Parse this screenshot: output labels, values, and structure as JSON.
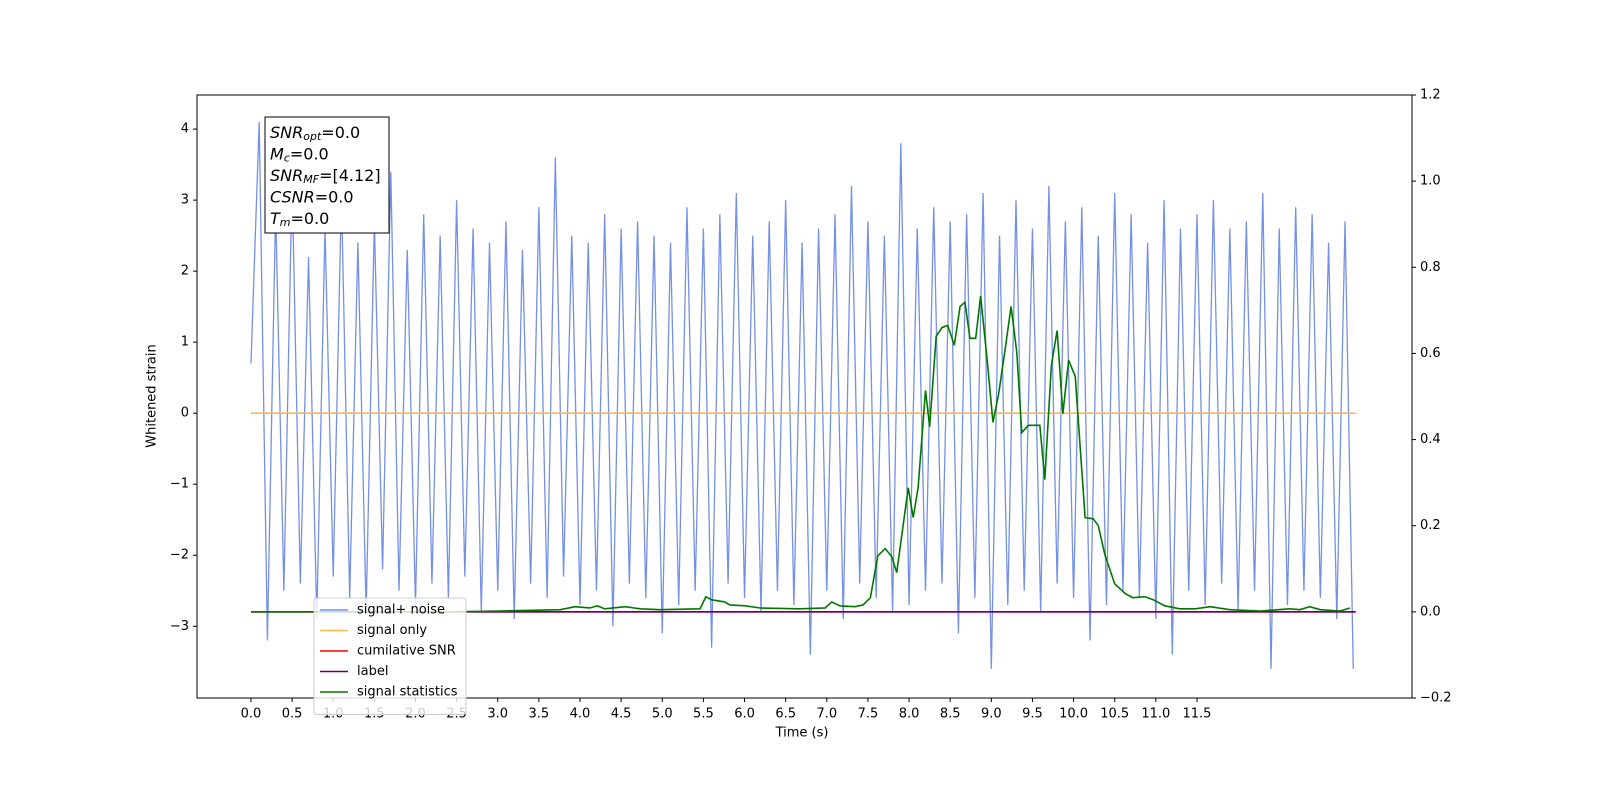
{
  "chart_data": {
    "type": "line",
    "xlabel": "Time (s)",
    "ylabel": "Whitened strain",
    "xlim": [
      -0.656,
      14.114
    ],
    "ylim": [
      -4.01,
      4.48
    ],
    "y2lim": [
      -0.2,
      1.2
    ],
    "xticks": [
      {
        "value": 0,
        "label": "0.0"
      },
      0.5,
      {
        "value": 1,
        "label": "1.0"
      },
      1.5,
      {
        "value": 2,
        "label": "2.0"
      },
      2.5,
      {
        "value": 3,
        "label": "3.0"
      },
      3.5,
      {
        "value": 4,
        "label": "4.0"
      },
      4.5,
      {
        "value": 5,
        "label": "5.0"
      },
      5.5,
      {
        "value": 6,
        "label": "6.0"
      },
      6.5,
      {
        "value": 7,
        "label": "7.0"
      },
      7.5,
      {
        "value": 8,
        "label": "8.0"
      },
      8.5,
      {
        "value": 9,
        "label": "9.0"
      },
      9.5,
      {
        "value": 10,
        "label": "10.0"
      },
      10.5,
      {
        "value": 11,
        "label": "11.0"
      },
      11.5
    ],
    "yticks": [
      {
        "value": -3,
        "label": "−3"
      },
      {
        "value": -2,
        "label": "−2"
      },
      {
        "value": -1,
        "label": "−1"
      },
      0,
      1,
      2,
      3,
      4
    ],
    "y2ticks": [
      {
        "value": -0.2,
        "label": "−0.2"
      },
      {
        "value": 0,
        "label": "0.0"
      },
      0.2,
      0.4,
      0.6,
      0.8,
      {
        "value": 1,
        "label": "1.0"
      },
      1.2
    ],
    "legend": "lower left",
    "annotation": [
      {
        "name": "SNR",
        "sub": "opt",
        "text": "=0.0"
      },
      {
        "name": "M",
        "sub": "c",
        "text": "=0.0"
      },
      {
        "name": "SNR",
        "sub": "MF",
        "text": "=[4.12]"
      },
      {
        "name": "CSNR",
        "text": "=0.0"
      },
      {
        "name": "T",
        "sub": "m",
        "text": "=0.0"
      }
    ],
    "series": [
      {
        "name": "signal+ noise",
        "color": "#7590e6",
        "x": [
          0,
          0.1,
          0.2,
          0.3,
          0.4,
          0.5,
          0.6,
          0.7,
          0.8,
          0.9,
          1,
          1.1,
          1.2,
          1.3,
          1.4,
          1.5,
          1.6,
          1.7,
          1.8,
          1.9,
          2,
          2.1,
          2.2,
          2.3,
          2.4,
          2.5,
          2.6,
          2.7,
          2.8,
          2.9,
          3,
          3.1,
          3.2,
          3.3,
          3.4,
          3.5,
          3.6,
          3.7,
          3.8,
          3.9,
          4,
          4.1,
          4.2,
          4.3,
          4.4,
          4.5,
          4.6,
          4.7,
          4.8,
          4.9,
          5,
          5.1,
          5.2,
          5.3,
          5.4,
          5.5,
          5.6,
          5.7,
          5.8,
          5.9,
          6,
          6.1,
          6.2,
          6.3,
          6.4,
          6.5,
          6.6,
          6.7,
          6.8,
          6.9,
          7,
          7.1,
          7.2,
          7.3,
          7.4,
          7.5,
          7.6,
          7.7,
          7.8,
          7.9,
          8,
          8.1,
          8.2,
          8.3,
          8.4,
          8.5,
          8.6,
          8.7,
          8.8,
          8.9,
          9,
          9.1,
          9.2,
          9.3,
          9.4,
          9.5,
          9.6,
          9.7,
          9.8,
          9.9,
          10,
          10.1,
          10.2,
          10.3,
          10.4,
          10.5,
          10.6,
          10.7,
          10.8,
          10.9,
          11,
          11.1,
          11.2,
          11.3,
          11.4,
          11.5,
          11.6,
          11.7,
          11.8,
          11.9,
          12,
          12.1,
          12.2,
          12.3,
          12.4,
          12.5,
          12.6,
          12.7,
          12.8,
          12.9,
          13,
          13.1,
          13.2,
          13.3,
          13.4
        ],
        "values": [
          0.7,
          4.1,
          -3.2,
          2.9,
          -2.5,
          3.3,
          -2.4,
          2.2,
          -2.9,
          2.6,
          -2.3,
          3.1,
          -2.6,
          2.4,
          -2.8,
          2.7,
          -2.2,
          3.4,
          -2.5,
          2.3,
          -2.7,
          2.8,
          -2.4,
          2.5,
          -2.6,
          3.0,
          -2.3,
          2.6,
          -2.8,
          2.4,
          -2.5,
          2.7,
          -2.9,
          2.3,
          -2.4,
          2.9,
          -2.6,
          3.6,
          -2.3,
          2.5,
          -2.7,
          2.4,
          -2.5,
          2.8,
          -3.0,
          2.6,
          -2.4,
          2.7,
          -2.6,
          2.5,
          -3.1,
          2.4,
          -2.7,
          2.9,
          -2.5,
          2.6,
          -3.3,
          2.8,
          -2.4,
          3.1,
          -2.6,
          2.5,
          -2.8,
          2.7,
          -2.5,
          3.0,
          -2.7,
          2.4,
          -3.4,
          2.6,
          -2.5,
          2.8,
          -2.9,
          3.2,
          -2.4,
          2.7,
          -2.6,
          2.5,
          -2.8,
          3.8,
          -2.7,
          2.6,
          -2.5,
          2.9,
          -2.4,
          2.7,
          -3.1,
          2.8,
          -2.6,
          3.1,
          -3.6,
          2.5,
          -2.7,
          3.0,
          -2.5,
          2.6,
          -2.8,
          3.2,
          -2.4,
          2.7,
          -2.6,
          2.9,
          -3.2,
          2.5,
          -2.7,
          3.1,
          -2.5,
          2.8,
          -2.6,
          2.4,
          -2.9,
          3.0,
          -3.4,
          2.6,
          -2.5,
          2.8,
          -2.7,
          3.0,
          -2.4,
          2.6,
          -2.8,
          2.7,
          -2.5,
          3.1,
          -3.6,
          2.6,
          -2.7,
          2.9,
          -2.5,
          2.8,
          -2.6,
          2.4,
          -2.9,
          2.7,
          -3.6
        ]
      },
      {
        "name": "signal only",
        "color": "#ffb74d",
        "x": [
          0,
          13.43
        ],
        "values": [
          0,
          0
        ]
      },
      {
        "name": "cumilative SNR",
        "color": "#ff0000",
        "axis": "y2",
        "x": [
          0,
          13.43
        ],
        "values": [
          0,
          0
        ]
      },
      {
        "name": "label",
        "color": "#6a006a",
        "axis": "y2",
        "x": [
          0,
          13.43
        ],
        "values": [
          0,
          0
        ]
      },
      {
        "name": "signal statistics",
        "color": "#007800",
        "axis": "y2",
        "x": [
          0,
          2.42,
          3.03,
          3.76,
          3.94,
          4.12,
          4.21,
          4.3,
          4.55,
          4.73,
          4.97,
          5.46,
          5.53,
          5.6,
          5.76,
          5.82,
          6.01,
          6.19,
          6.67,
          6.98,
          7.06,
          7.16,
          7.34,
          7.44,
          7.53,
          7.62,
          7.71,
          7.79,
          7.85,
          7.99,
          8.05,
          8.11,
          8.2,
          8.25,
          8.33,
          8.4,
          8.47,
          8.55,
          8.62,
          8.68,
          8.74,
          8.81,
          8.87,
          8.95,
          9.02,
          9.09,
          9.17,
          9.24,
          9.31,
          9.37,
          9.45,
          9.59,
          9.65,
          9.73,
          9.8,
          9.87,
          9.94,
          10.02,
          10.14,
          10.24,
          10.3,
          10.38,
          10.5,
          10.63,
          10.72,
          10.87,
          10.97,
          11.11,
          11.29,
          11.48,
          11.66,
          11.9,
          12.27,
          12.63,
          12.75,
          12.87,
          13,
          13.24,
          13.36
        ],
        "values": [
          0,
          0,
          0.002,
          0.005,
          0.012,
          0.009,
          0.014,
          0.007,
          0.012,
          0.007,
          0.005,
          0.007,
          0.035,
          0.028,
          0.023,
          0.016,
          0.014,
          0.009,
          0.007,
          0.009,
          0.023,
          0.014,
          0.012,
          0.016,
          0.033,
          0.13,
          0.147,
          0.128,
          0.091,
          0.288,
          0.219,
          0.288,
          0.514,
          0.43,
          0.64,
          0.66,
          0.665,
          0.619,
          0.709,
          0.719,
          0.635,
          0.635,
          0.733,
          0.584,
          0.44,
          0.507,
          0.612,
          0.709,
          0.602,
          0.416,
          0.433,
          0.433,
          0.307,
          0.572,
          0.653,
          0.46,
          0.584,
          0.547,
          0.219,
          0.216,
          0.2,
          0.133,
          0.065,
          0.042,
          0.033,
          0.035,
          0.028,
          0.014,
          0.007,
          0.007,
          0.012,
          0.005,
          0.002,
          0.007,
          0.005,
          0.012,
          0.005,
          0.002,
          0.009
        ]
      }
    ]
  }
}
